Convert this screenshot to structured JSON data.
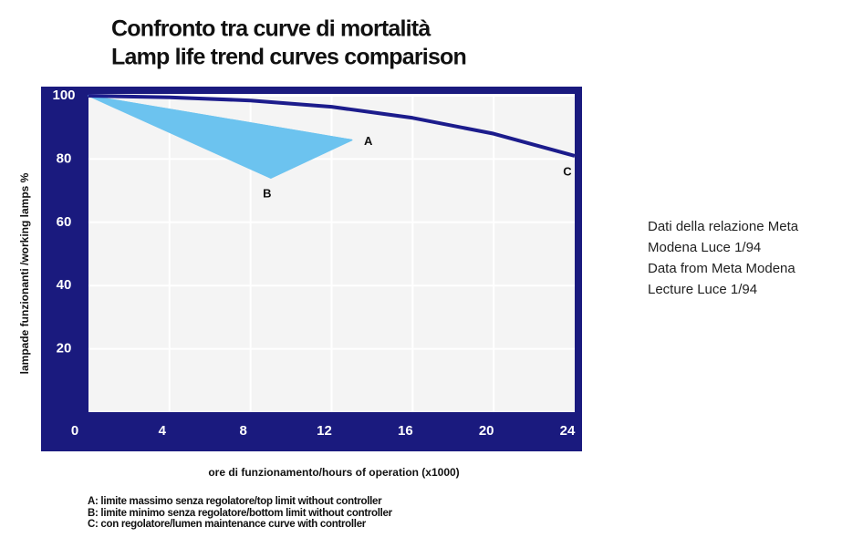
{
  "chart_data": {
    "type": "line",
    "title": "Confronto tra curve di mortalità",
    "subtitle": "Lamp life trend curves comparison",
    "x_label": "ore di funzionamento/hours of operation (x1000)",
    "y_label": "lampade funzionanti /working lamps %",
    "xlim": [
      0,
      24
    ],
    "xticks": [
      0,
      4,
      8,
      12,
      16,
      20,
      24
    ],
    "ylim": [
      0,
      100
    ],
    "yticks": [
      0,
      20,
      40,
      60,
      80,
      100
    ],
    "grid": true,
    "series": [
      {
        "name": "A",
        "color": "#6cc3ef",
        "x": [
          0,
          13
        ],
        "values": [
          100,
          86
        ]
      },
      {
        "name": "B",
        "color": "#6cc3ef",
        "x": [
          0,
          9,
          13
        ],
        "values": [
          100,
          74,
          86
        ]
      },
      {
        "name": "C",
        "color": "#1c1c8c",
        "x": [
          0,
          4,
          8,
          12,
          16,
          20,
          24
        ],
        "values": [
          100,
          99.5,
          98.5,
          96.5,
          93,
          88,
          81
        ]
      }
    ],
    "note": [
      "Dati della relazione Meta",
      "Modena Luce 1/94",
      "Data from Meta Modena",
      "Lecture Luce 1/94"
    ],
    "footnotes": [
      "A: limite massimo senza regolatore/top limit without controller",
      "B: limite minimo senza regolatore/bottom limit without controller",
      "C: con regolatore/lumen maintenance curve with controller"
    ]
  }
}
